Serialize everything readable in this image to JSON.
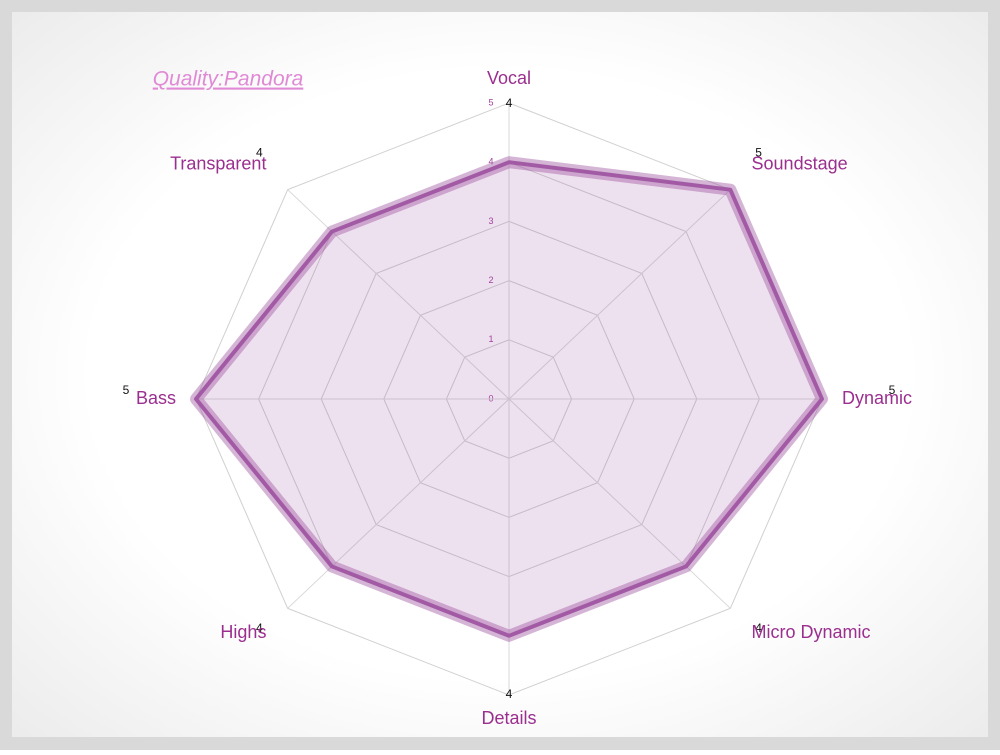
{
  "chart_data": {
    "type": "radar",
    "title": "Quality:Pandora",
    "categories": [
      "Vocal",
      "Soundstage",
      "Dynamic",
      "Micro Dynamic",
      "Details",
      "Highs",
      "Bass",
      "Transparent"
    ],
    "series": [
      {
        "color": "#a25aa5",
        "values": [
          4,
          5,
          5,
          4,
          4,
          4,
          5,
          4
        ]
      }
    ],
    "rlim": [
      0,
      5
    ],
    "rticks": [
      0,
      1,
      2,
      3,
      4,
      5
    ],
    "grid": true
  }
}
